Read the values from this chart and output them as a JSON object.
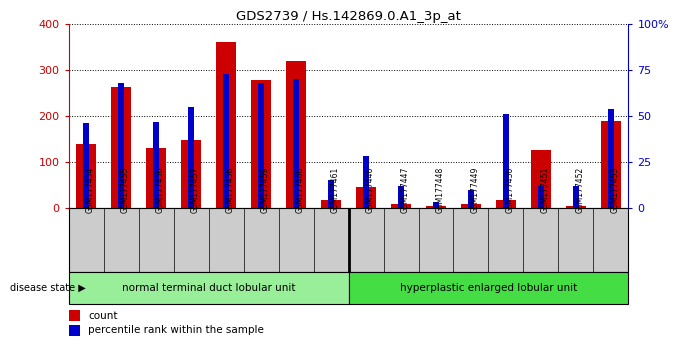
{
  "title": "GDS2739 / Hs.142869.0.A1_3p_at",
  "samples": [
    "GSM177454",
    "GSM177455",
    "GSM177456",
    "GSM177457",
    "GSM177458",
    "GSM177459",
    "GSM177460",
    "GSM177461",
    "GSM177446",
    "GSM177447",
    "GSM177448",
    "GSM177449",
    "GSM177450",
    "GSM177451",
    "GSM177452",
    "GSM177453"
  ],
  "counts": [
    140,
    262,
    130,
    148,
    360,
    278,
    320,
    18,
    45,
    8,
    5,
    8,
    18,
    126,
    4,
    190
  ],
  "percentiles": [
    46,
    68,
    47,
    55,
    73,
    68,
    70,
    15,
    28,
    12,
    3,
    10,
    51,
    12,
    12,
    54
  ],
  "group1_count": 8,
  "group2_count": 8,
  "group1_label": "normal terminal duct lobular unit",
  "group2_label": "hyperplastic enlarged lobular unit",
  "disease_state_label": "disease state",
  "count_color": "#cc0000",
  "percentile_color": "#0000cc",
  "group1_color": "#99ee99",
  "group2_color": "#44dd44",
  "ylim_left": [
    0,
    400
  ],
  "ylim_right": [
    0,
    100
  ],
  "yticks_left": [
    0,
    100,
    200,
    300,
    400
  ],
  "yticks_right": [
    0,
    25,
    50,
    75,
    100
  ],
  "yticklabels_right": [
    "0",
    "25",
    "50",
    "75",
    "100%"
  ],
  "bg_color": "#ffffff",
  "tick_area_color": "#cccccc",
  "legend_count_label": "count",
  "legend_percentile_label": "percentile rank within the sample"
}
